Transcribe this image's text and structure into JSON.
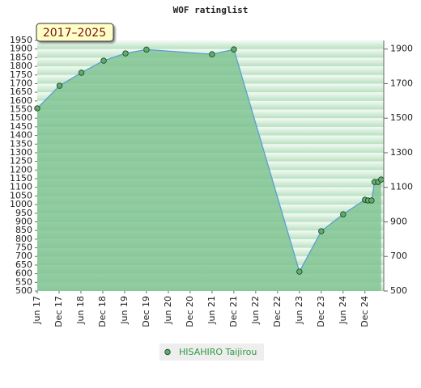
{
  "chart_data": {
    "type": "area",
    "title": "WOF ratinglist",
    "annotation": "2017–2025",
    "x": [
      2017.42,
      2017.93,
      2018.43,
      2018.94,
      2019.44,
      2019.92,
      2021.42,
      2021.92,
      2023.42,
      2023.92,
      2024.42,
      2024.92,
      2024.99,
      2025.07,
      2025.14,
      2025.22,
      2025.29
    ],
    "series": [
      {
        "name": "HISAHIRO Taijirou",
        "color": "#5a9fd4",
        "values": [
          1557,
          1688,
          1763,
          1833,
          1875,
          1897,
          1870,
          1898,
          612,
          846,
          944,
          1028,
          1024,
          1024,
          1131,
          1131,
          1145
        ]
      }
    ],
    "xlim": [
      2017.42,
      2025.35
    ],
    "xticks": [
      {
        "value": 2017.42,
        "label": "Jun 17"
      },
      {
        "value": 2017.92,
        "label": "Dec 17"
      },
      {
        "value": 2018.42,
        "label": "Jun 18"
      },
      {
        "value": 2018.92,
        "label": "Dec 18"
      },
      {
        "value": 2019.42,
        "label": "Jun 19"
      },
      {
        "value": 2019.92,
        "label": "Dec 19"
      },
      {
        "value": 2020.42,
        "label": "Jun 20"
      },
      {
        "value": 2020.92,
        "label": "Dec 20"
      },
      {
        "value": 2021.42,
        "label": "Jun 21"
      },
      {
        "value": 2021.92,
        "label": "Dec 21"
      },
      {
        "value": 2022.42,
        "label": "Jun 22"
      },
      {
        "value": 2022.92,
        "label": "Dec 22"
      },
      {
        "value": 2023.42,
        "label": "Jun 23"
      },
      {
        "value": 2023.92,
        "label": "Dec 23"
      },
      {
        "value": 2024.42,
        "label": "Jun 24"
      },
      {
        "value": 2024.92,
        "label": "Dec 24"
      }
    ],
    "ylim": [
      500,
      1950
    ],
    "yticks": [
      500,
      550,
      600,
      650,
      700,
      750,
      800,
      850,
      900,
      950,
      1000,
      1050,
      1100,
      1150,
      1200,
      1250,
      1300,
      1350,
      1400,
      1450,
      1500,
      1550,
      1600,
      1650,
      1700,
      1750,
      1800,
      1850,
      1900,
      1950
    ],
    "y2lim": [
      500,
      1950
    ],
    "y2ticks": [
      500,
      700,
      900,
      1100,
      1300,
      1500,
      1700,
      1900
    ],
    "fill_color": "#7cc28e",
    "legend": "bottom"
  }
}
